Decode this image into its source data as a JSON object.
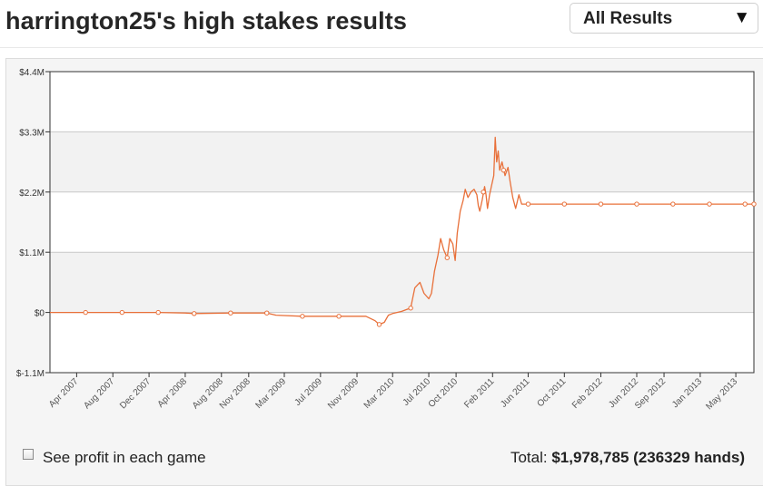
{
  "header": {
    "title": "harrington25's high stakes results",
    "filter": {
      "selected": "All Results",
      "arrow": "▼"
    }
  },
  "footer": {
    "checkbox_label": "See profit in each game",
    "checked": false,
    "total_label": "Total:",
    "total_amount": "$1,978,785",
    "total_hands": "(236329 hands)"
  },
  "colors": {
    "line": "#e8703a",
    "grid": "#c8c8c8",
    "band": "#f2f2f2",
    "axis": "#333333"
  },
  "chart_data": {
    "type": "line",
    "title": "",
    "xlabel": "",
    "ylabel": "",
    "y_tick_labels": [
      "$-1.1M",
      "$0",
      "$1.1M",
      "$2.2M",
      "$3.3M",
      "$4.4M"
    ],
    "y_ticks": [
      -1.1,
      0,
      1.1,
      2.2,
      3.3,
      4.4
    ],
    "ylim": [
      -1.1,
      4.4
    ],
    "y_unit": "$M",
    "x_tick_labels": [
      "Apr 2007",
      "Aug 2007",
      "Dec 2007",
      "Apr 2008",
      "Aug 2008",
      "Nov 2008",
      "Mar 2009",
      "Jul 2009",
      "Nov 2009",
      "Mar 2010",
      "Jul 2010",
      "Oct 2010",
      "Feb 2011",
      "Jun 2011",
      "Oct 2011",
      "Feb 2012",
      "Jun 2012",
      "Sep 2012",
      "Jan 2013",
      "May 2013"
    ],
    "x_ticks": [
      "2007-04-01",
      "2007-08-01",
      "2007-12-01",
      "2008-04-01",
      "2008-08-01",
      "2008-11-01",
      "2009-03-01",
      "2009-07-01",
      "2009-11-01",
      "2010-03-01",
      "2010-07-01",
      "2010-10-01",
      "2011-02-01",
      "2011-06-01",
      "2011-10-01",
      "2012-02-01",
      "2012-06-01",
      "2012-09-01",
      "2013-01-01",
      "2013-05-01"
    ],
    "xlim": [
      "2007-01-01",
      "2013-07-01"
    ],
    "grid": true,
    "legend": "none",
    "series": [
      {
        "points": [
          [
            "2007-01-01",
            0
          ],
          [
            "2007-05-01",
            0
          ],
          [
            "2007-09-01",
            0
          ],
          [
            "2008-01-01",
            0
          ],
          [
            "2008-04-01",
            -0.01
          ],
          [
            "2008-05-01",
            -0.02
          ],
          [
            "2008-09-01",
            -0.01
          ],
          [
            "2009-01-01",
            -0.01
          ],
          [
            "2009-02-01",
            -0.05
          ],
          [
            "2009-05-01",
            -0.07
          ],
          [
            "2009-09-01",
            -0.07
          ],
          [
            "2009-12-01",
            -0.07
          ],
          [
            "2010-01-01",
            -0.15
          ],
          [
            "2010-01-15",
            -0.22
          ],
          [
            "2010-02-01",
            -0.18
          ],
          [
            "2010-02-15",
            -0.05
          ],
          [
            "2010-03-01",
            -0.02
          ],
          [
            "2010-04-01",
            0.02
          ],
          [
            "2010-04-15",
            0.05
          ],
          [
            "2010-05-01",
            0.08
          ],
          [
            "2010-05-15",
            0.45
          ],
          [
            "2010-06-01",
            0.55
          ],
          [
            "2010-06-15",
            0.35
          ],
          [
            "2010-07-01",
            0.25
          ],
          [
            "2010-07-10",
            0.35
          ],
          [
            "2010-07-20",
            0.75
          ],
          [
            "2010-08-01",
            1.05
          ],
          [
            "2010-08-10",
            1.35
          ],
          [
            "2010-08-20",
            1.15
          ],
          [
            "2010-09-01",
            1.0
          ],
          [
            "2010-09-10",
            1.35
          ],
          [
            "2010-09-20",
            1.25
          ],
          [
            "2010-09-28",
            0.95
          ],
          [
            "2010-10-05",
            1.45
          ],
          [
            "2010-10-15",
            1.85
          ],
          [
            "2010-10-25",
            2.05
          ],
          [
            "2010-11-01",
            2.25
          ],
          [
            "2010-11-10",
            2.1
          ],
          [
            "2010-11-20",
            2.2
          ],
          [
            "2010-12-01",
            2.25
          ],
          [
            "2010-12-10",
            2.15
          ],
          [
            "2010-12-15",
            1.95
          ],
          [
            "2010-12-20",
            1.85
          ],
          [
            "2010-12-28",
            2.05
          ],
          [
            "2011-01-05",
            2.3
          ],
          [
            "2011-01-10",
            2.15
          ],
          [
            "2011-01-15",
            1.9
          ],
          [
            "2011-01-22",
            2.15
          ],
          [
            "2011-01-30",
            2.35
          ],
          [
            "2011-02-05",
            2.5
          ],
          [
            "2011-02-10",
            3.2
          ],
          [
            "2011-02-15",
            2.75
          ],
          [
            "2011-02-20",
            2.95
          ],
          [
            "2011-02-25",
            2.6
          ],
          [
            "2011-03-05",
            2.75
          ],
          [
            "2011-03-15",
            2.5
          ],
          [
            "2011-03-25",
            2.65
          ],
          [
            "2011-04-01",
            2.4
          ],
          [
            "2011-04-10",
            2.1
          ],
          [
            "2011-04-20",
            1.9
          ],
          [
            "2011-05-01",
            2.15
          ],
          [
            "2011-05-10",
            1.98
          ],
          [
            "2011-06-01",
            1.98
          ],
          [
            "2011-10-01",
            1.98
          ],
          [
            "2012-02-01",
            1.98
          ],
          [
            "2012-06-01",
            1.98
          ],
          [
            "2012-10-01",
            1.98
          ],
          [
            "2013-02-01",
            1.98
          ],
          [
            "2013-06-01",
            1.98
          ],
          [
            "2013-07-01",
            1.98
          ]
        ],
        "markers": [
          [
            "2007-05-01",
            0
          ],
          [
            "2007-09-01",
            0
          ],
          [
            "2008-01-01",
            0
          ],
          [
            "2008-05-01",
            -0.02
          ],
          [
            "2008-09-01",
            -0.01
          ],
          [
            "2009-01-01",
            -0.01
          ],
          [
            "2009-05-01",
            -0.07
          ],
          [
            "2009-09-01",
            -0.07
          ],
          [
            "2010-01-15",
            -0.22
          ],
          [
            "2010-05-01",
            0.08
          ],
          [
            "2010-09-01",
            1.0
          ],
          [
            "2011-01-01",
            2.2
          ],
          [
            "2011-03-10",
            2.6
          ],
          [
            "2011-06-01",
            1.98
          ],
          [
            "2011-10-01",
            1.98
          ],
          [
            "2012-02-01",
            1.98
          ],
          [
            "2012-06-01",
            1.98
          ],
          [
            "2012-10-01",
            1.98
          ],
          [
            "2013-02-01",
            1.98
          ],
          [
            "2013-06-01",
            1.98
          ],
          [
            "2013-07-01",
            1.98
          ]
        ]
      }
    ]
  }
}
